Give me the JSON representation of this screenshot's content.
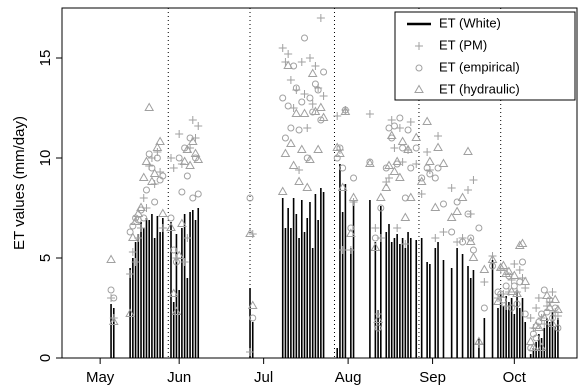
{
  "chart_data": {
    "type": "scatter",
    "ylabel": "ET values (mm/day)",
    "xlim": [
      113,
      302
    ],
    "ylim": [
      0,
      17.5
    ],
    "yticks": [
      0,
      5,
      10,
      15
    ],
    "xticks": [
      {
        "value": 127,
        "label": "May"
      },
      {
        "value": 156,
        "label": "Jun"
      },
      {
        "value": 187,
        "label": "Jul"
      },
      {
        "value": 218,
        "label": "Aug"
      },
      {
        "value": 249,
        "label": "Sep"
      },
      {
        "value": 279,
        "label": "Oct"
      }
    ],
    "vlines": [
      152,
      182,
      213,
      244,
      274
    ],
    "legend": "topright",
    "x": [
      131,
      132,
      138,
      139,
      140,
      141,
      142,
      143,
      144,
      145,
      146,
      147,
      148,
      149,
      150,
      153,
      154,
      155,
      156,
      157,
      158,
      159,
      160,
      161,
      162,
      163,
      182,
      183,
      194,
      195,
      196,
      197,
      198,
      199,
      200,
      201,
      202,
      203,
      204,
      205,
      206,
      207,
      208,
      209,
      214,
      215,
      216,
      217,
      219,
      220,
      226,
      228,
      229,
      230,
      232,
      233,
      234,
      235,
      236,
      237,
      238,
      239,
      240,
      241,
      243,
      245,
      247,
      248,
      250,
      251,
      253,
      256,
      258,
      260,
      262,
      263,
      264,
      266,
      268,
      271,
      273,
      274,
      275,
      276,
      277,
      278,
      279,
      280,
      281,
      282,
      283,
      285,
      286,
      287,
      288,
      289,
      290,
      291,
      292,
      293,
      294,
      295
    ],
    "series": [
      {
        "name": "ET (White)",
        "color": "#000000",
        "marker": "bar",
        "values": [
          2.7,
          2.5,
          4.5,
          5.0,
          5.8,
          6.2,
          6.8,
          6.5,
          7.0,
          6.9,
          7.2,
          6.0,
          7.1,
          6.3,
          7.0,
          6.8,
          2.8,
          6.2,
          3.4,
          6.5,
          7.2,
          4.0,
          7.3,
          7.4,
          6.9,
          7.5,
          3.5,
          1.8,
          8.0,
          6.5,
          7.5,
          6.5,
          8.0,
          7.2,
          6.0,
          7.9,
          6.3,
          7.0,
          7.8,
          5.5,
          8.2,
          6.9,
          8.5,
          8.3,
          0.5,
          9.7,
          7.3,
          8.7,
          5.5,
          7.9,
          7.9,
          5.8,
          2.4,
          7.6,
          6.3,
          6.7,
          5.8,
          6.0,
          6.2,
          5.7,
          6.0,
          5.5,
          6.3,
          6.0,
          5.9,
          6.0,
          4.8,
          4.7,
          5.5,
          5.8,
          4.9,
          4.5,
          5.5,
          5.2,
          4.6,
          4.0,
          4.4,
          1.0,
          2.0,
          4.9,
          2.5,
          3.2,
          2.6,
          3.1,
          2.8,
          3.0,
          2.2,
          3.3,
          2.5,
          3.0,
          1.8,
          0.2,
          0.5,
          0.8,
          1.2,
          1.0,
          1.5,
          2.0,
          1.8,
          2.3,
          1.6,
          2.0
        ]
      },
      {
        "name": "ET (PM)",
        "color": "#a0a0a0",
        "marker": "plus",
        "values": [
          3.0,
          2.0,
          4.2,
          5.3,
          4.8,
          6.0,
          6.5,
          8.0,
          7.5,
          9.6,
          10.0,
          8.7,
          10.3,
          9.3,
          6.5,
          10.0,
          9.5,
          5.0,
          11.2,
          9.7,
          4.8,
          6.0,
          10.5,
          11.9,
          11.0,
          11.6,
          0.3,
          6.2,
          15.5,
          14.8,
          15.2,
          13.9,
          12.5,
          13.4,
          9.4,
          14.8,
          13.2,
          11.5,
          15.0,
          12.7,
          14.6,
          13.5,
          17.0,
          13.1,
          12.1,
          10.4,
          5.4,
          12.4,
          5.4,
          7.8,
          12.2,
          6.5,
          2.2,
          6.0,
          8.8,
          9.0,
          11.9,
          10.5,
          6.5,
          11.5,
          9.8,
          5.7,
          10.4,
          11.8,
          9.7,
          8.2,
          10.3,
          9.4,
          6.0,
          11.1,
          6.3,
          8.5,
          5.8,
          6.0,
          8.4,
          7.2,
          8.9,
          0.7,
          3.8,
          5.1,
          3.0,
          4.4,
          3.2,
          2.6,
          3.3,
          3.9,
          4.7,
          3.3,
          4.4,
          4.0,
          3.5,
          2.0,
          1.5,
          2.5,
          3.0,
          2.0,
          1.7,
          2.6,
          2.8,
          3.3,
          2.3,
          2.1
        ]
      },
      {
        "name": "ET (empirical)",
        "color": "#a0a0a0",
        "marker": "circle",
        "values": [
          3.4,
          3.0,
          6.3,
          6.6,
          7.0,
          6.9,
          7.4,
          7.0,
          8.4,
          10.2,
          9.5,
          7.8,
          10.0,
          8.9,
          9.1,
          7.0,
          5.4,
          4.8,
          10.0,
          8.3,
          10.5,
          9.1,
          11.0,
          8.0,
          10.0,
          8.2,
          8.0,
          2.0,
          13.0,
          11.0,
          12.6,
          11.5,
          14.6,
          13.5,
          11.4,
          12.8,
          16.0,
          10.0,
          13.0,
          12.3,
          13.7,
          13.4,
          11.9,
          14.3,
          10.0,
          10.5,
          9.5,
          12.4,
          6.5,
          9.0,
          9.8,
          6.0,
          1.5,
          7.5,
          9.5,
          11.5,
          11.0,
          11.6,
          9.7,
          12.0,
          10.5,
          8.0,
          11.4,
          9.5,
          10.5,
          9.0,
          9.5,
          9.2,
          9.0,
          9.5,
          7.7,
          6.3,
          7.8,
          5.8,
          7.2,
          6.0,
          5.4,
          6.5,
          2.5,
          4.6,
          3.3,
          3.2,
          2.9,
          3.6,
          4.1,
          2.5,
          3.6,
          2.7,
          3.8,
          4.8,
          2.2,
          0.5,
          1.2,
          1.0,
          1.8,
          2.2,
          3.4,
          2.3,
          2.9,
          2.0,
          2.5,
          1.5
        ]
      },
      {
        "name": "ET (hydraulic)",
        "color": "#a0a0a0",
        "marker": "triangle",
        "values": [
          4.9,
          1.8,
          2.2,
          6.0,
          6.8,
          7.2,
          7.5,
          9.0,
          9.8,
          12.5,
          8.8,
          9.2,
          10.5,
          10.8,
          7.2,
          6.5,
          3.2,
          2.3,
          5.1,
          6.7,
          9.8,
          10.4,
          9.6,
          10.8,
          10.2,
          9.9,
          6.2,
          2.6,
          8.3,
          10.2,
          14.6,
          10.7,
          9.6,
          12.2,
          8.8,
          10.4,
          12.2,
          8.5,
          9.9,
          14.2,
          12.3,
          10.4,
          12.5,
          12.0,
          10.5,
          10.2,
          8.5,
          12.3,
          6.2,
          8.0,
          9.7,
          5.5,
          1.9,
          8.0,
          8.5,
          9.6,
          11.1,
          9.3,
          9.8,
          9.0,
          10.8,
          7.0,
          10.4,
          8.0,
          11.0,
          8.8,
          11.8,
          9.8,
          7.5,
          10.5,
          9.7,
          7.0,
          7.3,
          8.0,
          10.3,
          5.8,
          5.0,
          0.8,
          4.4,
          4.9,
          2.8,
          4.5,
          4.6,
          4.2,
          4.3,
          3.3,
          4.1,
          3.2,
          5.6,
          5.7,
          3.8,
          0.8,
          0.5,
          1.6,
          1.5,
          0.5,
          2.0,
          3.1,
          2.5,
          1.7,
          2.9,
          2.4
        ]
      }
    ]
  }
}
